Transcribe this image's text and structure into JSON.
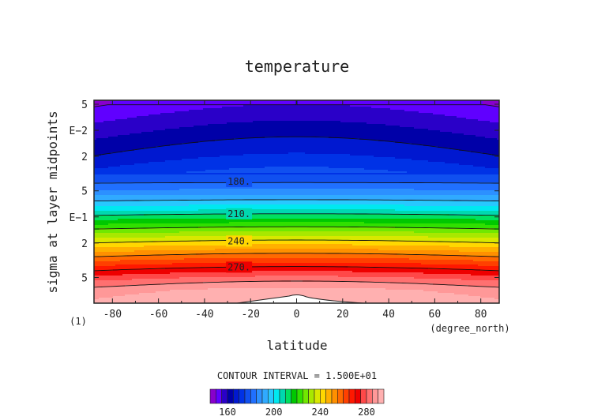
{
  "chart_data": {
    "type": "contour",
    "title": "temperature",
    "xlabel": "latitude",
    "ylabel": "sigma at layer midpoints",
    "x_unit": "(degree_north)",
    "panel_tag": "(1)",
    "x_ticks": [
      -80,
      -60,
      -40,
      -20,
      0,
      20,
      40,
      60,
      80
    ],
    "x_range": [
      -88,
      88
    ],
    "y_scale": "log",
    "y_range_sigma": [
      0.0045,
      0.99
    ],
    "y_ticks": [
      {
        "label": "5",
        "sigma": 0.005
      },
      {
        "label": "E−2",
        "sigma": 0.01
      },
      {
        "label": "2",
        "sigma": 0.02
      },
      {
        "label": "5",
        "sigma": 0.05
      },
      {
        "label": "E−1",
        "sigma": 0.1
      },
      {
        "label": "2",
        "sigma": 0.2
      },
      {
        "label": "5",
        "sigma": 0.5
      }
    ],
    "contour_interval_text": "CONTOUR INTERVAL = 1.500E+01",
    "contour_labels": [
      {
        "label": "180.",
        "value": 180,
        "lat": -25,
        "sigma": 0.039
      },
      {
        "label": "210.",
        "value": 210,
        "lat": -25,
        "sigma": 0.092
      },
      {
        "label": "240.",
        "value": 240,
        "lat": -25,
        "sigma": 0.19
      },
      {
        "label": "270.",
        "value": 270,
        "lat": -25,
        "sigma": 0.38
      }
    ],
    "levels": [
      {
        "sigma": 0.005,
        "temp": 152
      },
      {
        "sigma": 0.01,
        "temp": 160
      },
      {
        "sigma": 0.02,
        "temp": 168
      },
      {
        "sigma": 0.035,
        "temp": 176
      },
      {
        "sigma": 0.05,
        "temp": 186
      },
      {
        "sigma": 0.08,
        "temp": 203
      },
      {
        "sigma": 0.1,
        "temp": 213
      },
      {
        "sigma": 0.15,
        "temp": 230
      },
      {
        "sigma": 0.2,
        "temp": 242
      },
      {
        "sigma": 0.3,
        "temp": 259
      },
      {
        "sigma": 0.4,
        "temp": 271
      },
      {
        "sigma": 0.55,
        "temp": 283
      },
      {
        "sigma": 0.7,
        "temp": 290
      },
      {
        "sigma": 0.9,
        "temp": 293
      }
    ],
    "colorbar": {
      "ticks": [
        160,
        200,
        240,
        280
      ],
      "bounds": [
        145,
        150,
        155,
        160,
        165,
        170,
        175,
        180,
        185,
        190,
        195,
        200,
        205,
        210,
        215,
        220,
        225,
        230,
        235,
        240,
        245,
        250,
        255,
        260,
        265,
        270,
        275,
        280,
        285,
        290,
        295
      ],
      "colors": [
        "#8800cc",
        "#6000ff",
        "#2a00c8",
        "#0000a8",
        "#0018d0",
        "#0032e6",
        "#1050f0",
        "#2070ff",
        "#2c90ff",
        "#30aaff",
        "#28c8ff",
        "#00e8f0",
        "#00d8b0",
        "#00e060",
        "#00c800",
        "#30e000",
        "#70e800",
        "#a8e800",
        "#d8e800",
        "#ffd800",
        "#ffb000",
        "#ff9000",
        "#ff6a00",
        "#ff4000",
        "#ff1800",
        "#ee0000",
        "#ff4848",
        "#ff7070",
        "#ff9898",
        "#ffb0b0"
      ]
    }
  }
}
